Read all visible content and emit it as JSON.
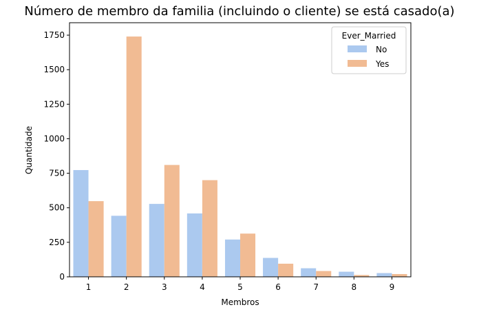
{
  "chart_data": {
    "type": "bar",
    "title": "Número de membro da familia (incluindo o cliente) se está casado(a)",
    "xlabel": "Membros",
    "ylabel": "Quantidade",
    "categories": [
      "1",
      "2",
      "3",
      "4",
      "5",
      "6",
      "7",
      "8",
      "9"
    ],
    "series": [
      {
        "name": "No",
        "color": "#abc9ef",
        "values": [
          773,
          442,
          528,
          459,
          270,
          137,
          62,
          37,
          27
        ]
      },
      {
        "name": "Yes",
        "color": "#f1bb93",
        "values": [
          548,
          1740,
          810,
          700,
          313,
          95,
          42,
          13,
          20
        ]
      }
    ],
    "ylim": [
      0,
      1840
    ],
    "yticks": [
      0,
      250,
      500,
      750,
      1000,
      1250,
      1500,
      1750
    ],
    "grid": false,
    "legend": {
      "title": "Ever_Married",
      "placement": "top-right"
    }
  }
}
